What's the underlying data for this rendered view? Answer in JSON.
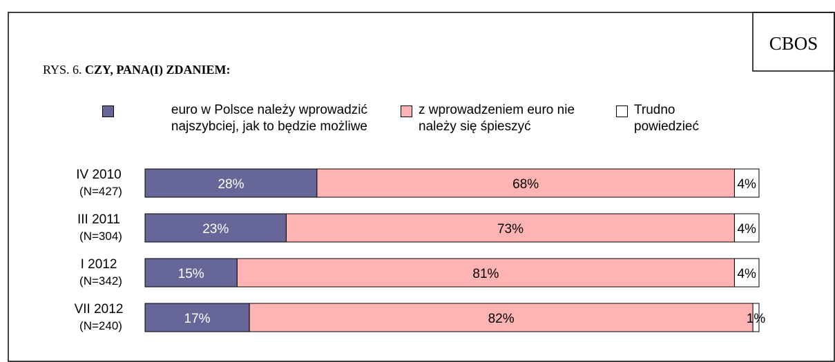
{
  "label": "CBOS",
  "chart_data": {
    "type": "stacked_bar_horizontal",
    "title_prefix": "RYS. 6.",
    "title": "CZY, PANA(I) ZDANIEM:",
    "categories": [
      "IV 2010",
      "III 2011",
      "I 2012",
      "VII 2012"
    ],
    "sample_sizes": [
      "(N=427)",
      "(N=304)",
      "(N=342)",
      "(N=240)"
    ],
    "xlim": [
      0,
      100
    ],
    "series": [
      {
        "name": "euro w Polsce należy wprowadzić najszybciej, jak to będzie możliwe",
        "color": "#666699",
        "values": [
          28,
          23,
          15,
          17
        ],
        "value_labels": [
          "28%",
          "23%",
          "15%",
          "17%"
        ]
      },
      {
        "name": "z wprowadzeniem euro nie należy się śpieszyć",
        "color": "#ffb3b3",
        "values": [
          68,
          73,
          81,
          82
        ],
        "value_labels": [
          "68%",
          "73%",
          "81%",
          "82%"
        ]
      },
      {
        "name": "Trudno powiedzieć",
        "color": "#ffffff",
        "values": [
          4,
          4,
          4,
          1
        ],
        "value_labels": [
          "4%",
          "4%",
          "4%",
          "1%"
        ]
      }
    ]
  }
}
